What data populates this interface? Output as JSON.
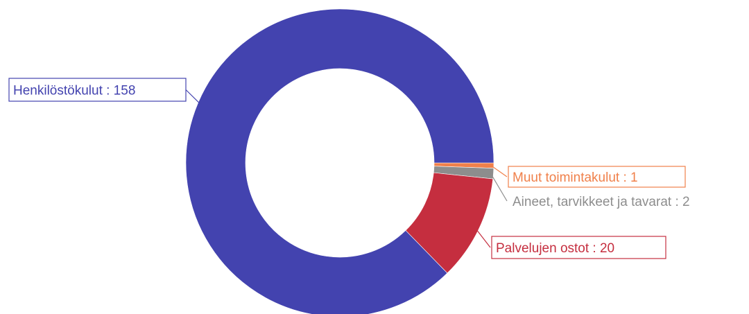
{
  "chart_data": {
    "type": "pie",
    "variant": "donut",
    "slices": [
      {
        "label": "Henkilöstökulut",
        "value": 158,
        "display": "Henkilöstökulut :  158",
        "color": "#4343af"
      },
      {
        "label": "Muut toimintakulut",
        "value": 1,
        "display": "Muut toimintakulut :  1",
        "color": "#f0804a"
      },
      {
        "label": "Aineet, tarvikkeet ja tavarat",
        "value": 2,
        "display": "Aineet, tarvikkeet ja tavarat :  2",
        "color": "#8d8d8d"
      },
      {
        "label": "Palvelujen ostot",
        "value": 20,
        "display": "Palvelujen ostot :  20",
        "color": "#c52e3f"
      }
    ]
  }
}
